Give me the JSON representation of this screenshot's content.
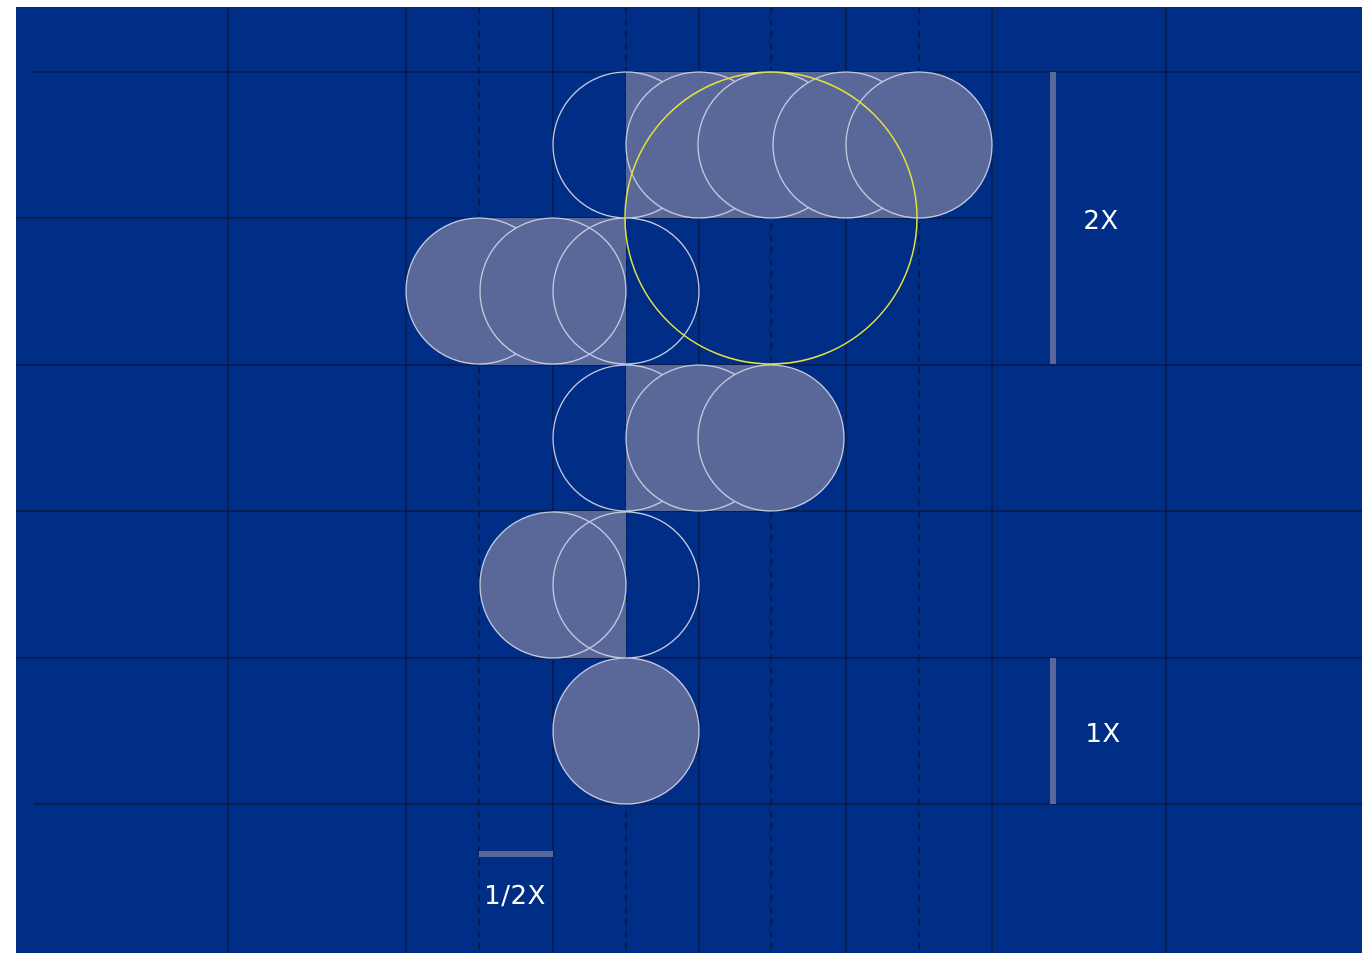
{
  "colors": {
    "background": "#002d86",
    "grid_line": "#0d1635",
    "circle_fill": "#5a6899",
    "circle_stroke": "#c3c9df",
    "highlight_circle": "#e5e23b",
    "scale_bar": "#5a6899",
    "label_text": "#ffffff"
  },
  "scale_labels": {
    "two_x": "2X",
    "one_x": "1X",
    "half_x": "1/2X"
  },
  "figure": {
    "shape": "letter-F-built-from-circles",
    "highlight": "large-circle-outline"
  }
}
